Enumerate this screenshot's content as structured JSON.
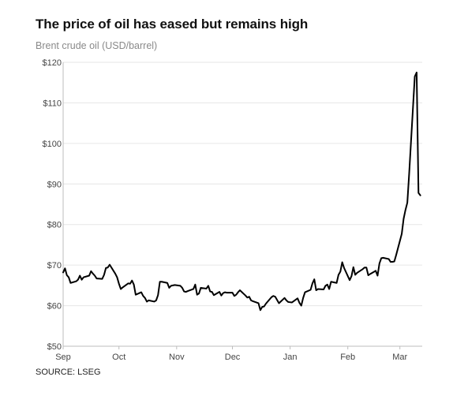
{
  "header": {
    "title": "The price of oil has eased but remains high",
    "subtitle": "Brent crude oil (USD/barrel)"
  },
  "footer": {
    "source": "SOURCE: LSEG"
  },
  "colors": {
    "line": "#000000",
    "grid": "#e6e6e6",
    "axis": "#bdbdbd",
    "tick_text": "#444444"
  },
  "chart_data": {
    "type": "line",
    "title": "The price of oil has eased but remains high",
    "subtitle": "Brent crude oil (USD/barrel)",
    "xlabel": "",
    "ylabel": "",
    "ylim": [
      50,
      120
    ],
    "y_ticks": [
      50,
      60,
      70,
      80,
      90,
      100,
      110,
      120
    ],
    "y_tick_labels": [
      "$50",
      "$60",
      "$70",
      "$80",
      "$90",
      "$100",
      "$110",
      "$120"
    ],
    "x_range": [
      "2025-09-01",
      "2026-03-13"
    ],
    "x_ticks": [
      {
        "date": "2025-09-01",
        "label": "Sep"
      },
      {
        "date": "2025-10-01",
        "label": "Oct"
      },
      {
        "date": "2025-11-01",
        "label": "Nov"
      },
      {
        "date": "2025-12-01",
        "label": "Dec"
      },
      {
        "date": "2026-01-01",
        "label": "Jan"
      },
      {
        "date": "2026-02-01",
        "label": "Feb"
      },
      {
        "date": "2026-03-01",
        "label": "Mar"
      }
    ],
    "grid": "horizontal",
    "legend": "none",
    "series": [
      {
        "points": [
          [
            "2025-09-01",
            68.2
          ],
          [
            "2025-09-02",
            69.2
          ],
          [
            "2025-09-03",
            67.5
          ],
          [
            "2025-09-04",
            67.0
          ],
          [
            "2025-09-05",
            65.6
          ],
          [
            "2025-09-08",
            66.0
          ],
          [
            "2025-09-09",
            66.4
          ],
          [
            "2025-09-10",
            67.4
          ],
          [
            "2025-09-11",
            66.4
          ],
          [
            "2025-09-12",
            67.0
          ],
          [
            "2025-09-15",
            67.4
          ],
          [
            "2025-09-16",
            68.5
          ],
          [
            "2025-09-17",
            67.9
          ],
          [
            "2025-09-18",
            67.4
          ],
          [
            "2025-09-19",
            66.7
          ],
          [
            "2025-09-22",
            66.6
          ],
          [
            "2025-09-23",
            67.6
          ],
          [
            "2025-09-24",
            69.3
          ],
          [
            "2025-09-25",
            69.4
          ],
          [
            "2025-09-26",
            70.1
          ],
          [
            "2025-09-29",
            67.9
          ],
          [
            "2025-09-30",
            67.0
          ],
          [
            "2025-10-01",
            65.4
          ],
          [
            "2025-10-02",
            64.1
          ],
          [
            "2025-10-03",
            64.5
          ],
          [
            "2025-10-06",
            65.5
          ],
          [
            "2025-10-07",
            65.4
          ],
          [
            "2025-10-08",
            66.2
          ],
          [
            "2025-10-09",
            65.2
          ],
          [
            "2025-10-10",
            62.7
          ],
          [
            "2025-10-13",
            63.3
          ],
          [
            "2025-10-14",
            62.4
          ],
          [
            "2025-10-15",
            61.9
          ],
          [
            "2025-10-16",
            61.0
          ],
          [
            "2025-10-17",
            61.3
          ],
          [
            "2025-10-20",
            61.0
          ],
          [
            "2025-10-21",
            61.3
          ],
          [
            "2025-10-22",
            62.6
          ],
          [
            "2025-10-23",
            65.9
          ],
          [
            "2025-10-24",
            65.9
          ],
          [
            "2025-10-27",
            65.6
          ],
          [
            "2025-10-28",
            64.4
          ],
          [
            "2025-10-29",
            64.9
          ],
          [
            "2025-10-30",
            65.0
          ],
          [
            "2025-10-31",
            65.1
          ],
          [
            "2025-11-03",
            64.9
          ],
          [
            "2025-11-04",
            64.4
          ],
          [
            "2025-11-05",
            63.5
          ],
          [
            "2025-11-06",
            63.4
          ],
          [
            "2025-11-07",
            63.6
          ],
          [
            "2025-11-10",
            64.1
          ],
          [
            "2025-11-11",
            65.2
          ],
          [
            "2025-11-12",
            62.7
          ],
          [
            "2025-11-13",
            63.0
          ],
          [
            "2025-11-14",
            64.4
          ],
          [
            "2025-11-17",
            64.2
          ],
          [
            "2025-11-18",
            64.9
          ],
          [
            "2025-11-19",
            63.5
          ],
          [
            "2025-11-20",
            63.4
          ],
          [
            "2025-11-21",
            62.6
          ],
          [
            "2025-11-24",
            63.4
          ],
          [
            "2025-11-25",
            62.5
          ],
          [
            "2025-11-26",
            63.1
          ],
          [
            "2025-11-27",
            63.3
          ],
          [
            "2025-11-28",
            63.2
          ],
          [
            "2025-12-01",
            63.2
          ],
          [
            "2025-12-02",
            62.4
          ],
          [
            "2025-12-03",
            62.7
          ],
          [
            "2025-12-04",
            63.3
          ],
          [
            "2025-12-05",
            63.8
          ],
          [
            "2025-12-08",
            62.5
          ],
          [
            "2025-12-09",
            62.0
          ],
          [
            "2025-12-10",
            62.2
          ],
          [
            "2025-12-11",
            61.3
          ],
          [
            "2025-12-12",
            61.1
          ],
          [
            "2025-12-15",
            60.6
          ],
          [
            "2025-12-16",
            58.9
          ],
          [
            "2025-12-17",
            59.7
          ],
          [
            "2025-12-18",
            59.8
          ],
          [
            "2025-12-19",
            60.5
          ],
          [
            "2025-12-22",
            62.1
          ],
          [
            "2025-12-23",
            62.4
          ],
          [
            "2025-12-24",
            62.2
          ],
          [
            "2025-12-26",
            60.6
          ],
          [
            "2025-12-29",
            61.9
          ],
          [
            "2025-12-30",
            61.3
          ],
          [
            "2025-12-31",
            60.9
          ],
          [
            "2026-01-02",
            60.8
          ],
          [
            "2026-01-05",
            61.8
          ],
          [
            "2026-01-06",
            60.7
          ],
          [
            "2026-01-07",
            60.0
          ],
          [
            "2026-01-08",
            61.9
          ],
          [
            "2026-01-09",
            63.3
          ],
          [
            "2026-01-12",
            63.9
          ],
          [
            "2026-01-13",
            65.5
          ],
          [
            "2026-01-14",
            66.5
          ],
          [
            "2026-01-15",
            63.8
          ],
          [
            "2026-01-16",
            64.1
          ],
          [
            "2026-01-19",
            64.0
          ],
          [
            "2026-01-20",
            64.9
          ],
          [
            "2026-01-21",
            65.2
          ],
          [
            "2026-01-22",
            64.1
          ],
          [
            "2026-01-23",
            65.9
          ],
          [
            "2026-01-26",
            65.6
          ],
          [
            "2026-01-27",
            67.6
          ],
          [
            "2026-01-28",
            68.4
          ],
          [
            "2026-01-29",
            70.7
          ],
          [
            "2026-01-30",
            69.3
          ],
          [
            "2026-02-02",
            66.3
          ],
          [
            "2026-02-03",
            67.3
          ],
          [
            "2026-02-04",
            69.5
          ],
          [
            "2026-02-05",
            67.6
          ],
          [
            "2026-02-06",
            68.1
          ],
          [
            "2026-02-09",
            69.0
          ],
          [
            "2026-02-10",
            69.4
          ],
          [
            "2026-02-11",
            69.4
          ],
          [
            "2026-02-12",
            67.5
          ],
          [
            "2026-02-13",
            67.8
          ],
          [
            "2026-02-16",
            68.6
          ],
          [
            "2026-02-17",
            67.4
          ],
          [
            "2026-02-18",
            70.4
          ],
          [
            "2026-02-19",
            71.7
          ],
          [
            "2026-02-20",
            71.8
          ],
          [
            "2026-02-23",
            71.5
          ],
          [
            "2026-02-24",
            70.8
          ],
          [
            "2026-02-25",
            70.8
          ],
          [
            "2026-02-26",
            70.9
          ],
          [
            "2026-02-27",
            72.5
          ],
          [
            "2026-03-02",
            77.7
          ],
          [
            "2026-03-03",
            81.4
          ],
          [
            "2026-03-04",
            83.6
          ],
          [
            "2026-03-05",
            85.4
          ],
          [
            "2026-03-06",
            92.7
          ],
          [
            "2026-03-09",
            116.5
          ],
          [
            "2026-03-10",
            117.5
          ],
          [
            "2026-03-11",
            87.8
          ],
          [
            "2026-03-12",
            87.2
          ]
        ]
      }
    ]
  }
}
